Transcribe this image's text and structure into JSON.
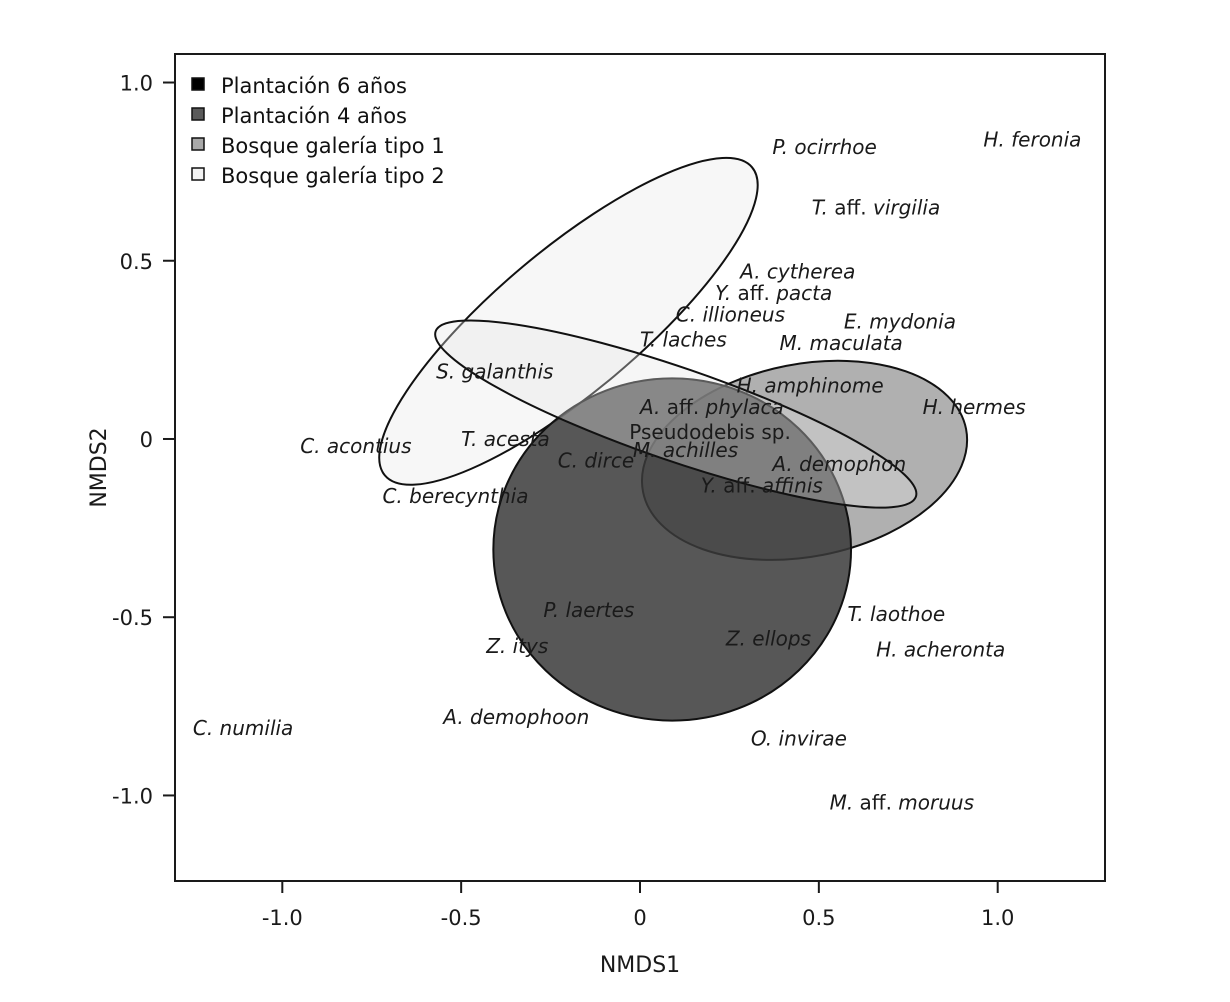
{
  "chart_data": {
    "type": "scatter",
    "xlabel": "NMDS1",
    "ylabel": "NMDS2",
    "xlim": [
      -1.3,
      1.3
    ],
    "ylim": [
      -1.24,
      1.08
    ],
    "x_ticks": [
      {
        "value": -1.0,
        "label": "-1.0"
      },
      {
        "value": -0.5,
        "label": "-0.5"
      },
      {
        "value": 0.0,
        "label": "0"
      },
      {
        "value": 0.5,
        "label": "0.5"
      },
      {
        "value": 1.0,
        "label": "1.0"
      }
    ],
    "y_ticks": [
      {
        "value": 1.0,
        "label": "1.0"
      },
      {
        "value": 0.5,
        "label": "0.5"
      },
      {
        "value": 0.0,
        "label": "0"
      },
      {
        "value": -0.5,
        "label": "-0.5"
      },
      {
        "value": -1.0,
        "label": "-1.0"
      }
    ],
    "grid": false,
    "legend": {
      "placement": "top-left",
      "entries": [
        {
          "label": "Plantación 6 años",
          "color": "#000000"
        },
        {
          "label": "Plantación 4 años",
          "color": "#5a5a5a"
        },
        {
          "label": "Bosque galería tipo 1",
          "color": "#a8a8a8"
        },
        {
          "label": "Bosque galería  tipo 2",
          "color": "#f2f2f2"
        }
      ]
    },
    "ellipses": [
      {
        "group": "Bosque galería  tipo 2",
        "cx": -0.2,
        "cy": 0.33,
        "rx": 0.67,
        "ry": 0.2,
        "angle_deg": 40,
        "fill": "#f0f0f0",
        "opacity": 0.55
      },
      {
        "group": "Bosque galería tipo 1",
        "cx": 0.46,
        "cy": -0.06,
        "rx": 0.46,
        "ry": 0.27,
        "angle_deg": 11,
        "fill": "#9c9c9c",
        "opacity": 0.8
      },
      {
        "group": "Plantación 6 años",
        "cx": 0.09,
        "cy": -0.31,
        "rx": 0.5,
        "ry": 0.48,
        "angle_deg": 0,
        "fill": "#3a3a3a",
        "opacity": 0.85
      },
      {
        "group": "Plantación 4 años",
        "cx": 0.1,
        "cy": 0.07,
        "rx": 0.71,
        "ry": 0.13,
        "angle_deg": -19,
        "fill": "#e6e6e6",
        "opacity": 0.35
      }
    ],
    "points": [
      {
        "italic": "P. ocirrhoe",
        "rest": "",
        "x": 0.37,
        "y": 0.8
      },
      {
        "italic": "H. feronia",
        "rest": "",
        "x": 0.96,
        "y": 0.82
      },
      {
        "italic": "T.",
        "rest": " aff. ",
        "italic2": "virgilia",
        "x": 0.48,
        "y": 0.63
      },
      {
        "italic": "A. cytherea",
        "rest": "",
        "x": 0.28,
        "y": 0.45
      },
      {
        "italic": "Y.",
        "rest": " aff. ",
        "italic2": "pacta",
        "x": 0.21,
        "y": 0.39
      },
      {
        "italic": "C. illioneus",
        "rest": "",
        "x": 0.1,
        "y": 0.33
      },
      {
        "italic": "E. mydonia",
        "rest": "",
        "x": 0.57,
        "y": 0.31
      },
      {
        "italic": "T. laches",
        "rest": "",
        "x": 0.0,
        "y": 0.26
      },
      {
        "italic": "M. maculata",
        "rest": "",
        "x": 0.39,
        "y": 0.25
      },
      {
        "italic": "S. galanthis",
        "rest": "",
        "x": -0.57,
        "y": 0.17
      },
      {
        "italic": "H. amphinome",
        "rest": "",
        "x": 0.27,
        "y": 0.13
      },
      {
        "italic": "H. hermes",
        "rest": "",
        "x": 0.79,
        "y": 0.07
      },
      {
        "italic": "A.",
        "rest": " aff. ",
        "italic2": "phylaca",
        "x": 0.0,
        "y": 0.07
      },
      {
        "italic": "",
        "rest": "Pseudodebis sp.",
        "x": -0.03,
        "y": 0.0
      },
      {
        "italic": "C. acontius",
        "rest": "",
        "x": -0.95,
        "y": -0.04
      },
      {
        "italic": "T. acesta",
        "rest": "",
        "x": -0.5,
        "y": -0.02
      },
      {
        "italic": "M. achilles",
        "rest": "",
        "x": -0.02,
        "y": -0.05
      },
      {
        "italic": "C. dirce",
        "rest": "",
        "x": -0.23,
        "y": -0.08
      },
      {
        "italic": "A. demophon",
        "rest": "",
        "x": 0.37,
        "y": -0.09
      },
      {
        "italic": "Y.",
        "rest": " aff. ",
        "italic2": "affinis",
        "x": 0.17,
        "y": -0.15
      },
      {
        "italic": "C. berecynthia",
        "rest": "",
        "x": -0.72,
        "y": -0.18
      },
      {
        "italic": "P. laertes",
        "rest": "",
        "x": -0.27,
        "y": -0.5
      },
      {
        "italic": "T. laothoe",
        "rest": "",
        "x": 0.58,
        "y": -0.51
      },
      {
        "italic": "Z. ellops",
        "rest": "",
        "x": 0.24,
        "y": -0.58
      },
      {
        "italic": "Z. itys",
        "rest": "",
        "x": -0.43,
        "y": -0.6
      },
      {
        "italic": "H. acheronta",
        "rest": "",
        "x": 0.66,
        "y": -0.61
      },
      {
        "italic": "A. demophoon",
        "rest": "",
        "x": -0.55,
        "y": -0.8
      },
      {
        "italic": "C. numilia",
        "rest": "",
        "x": -1.25,
        "y": -0.83
      },
      {
        "italic": "O. invirae",
        "rest": "",
        "x": 0.31,
        "y": -0.86
      },
      {
        "italic": "M.",
        "rest": " aff. ",
        "italic2": "moruus",
        "x": 0.53,
        "y": -1.04
      }
    ]
  }
}
